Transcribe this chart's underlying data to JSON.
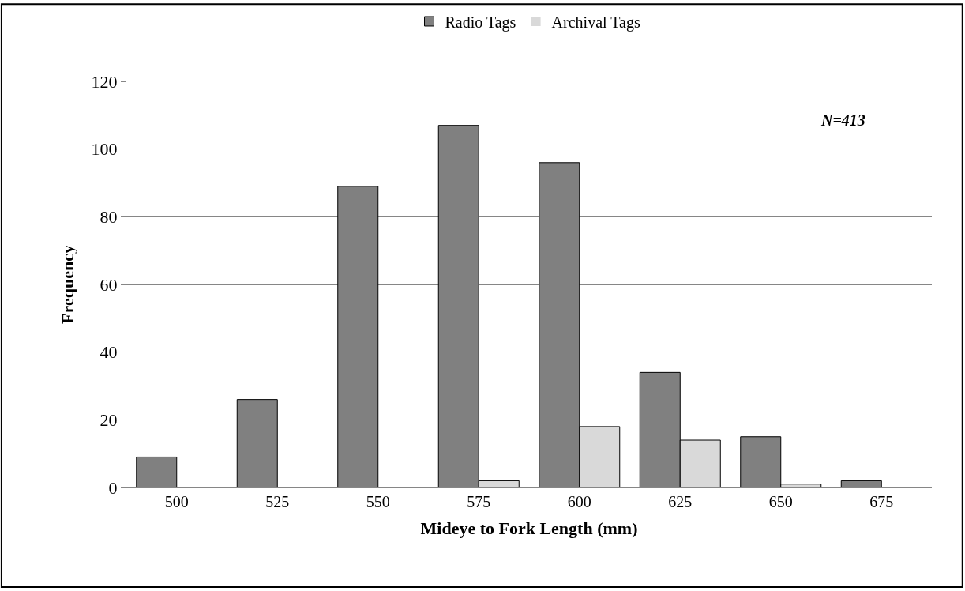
{
  "chart_data": {
    "type": "bar",
    "xlabel": "Mideye to Fork Length (mm)",
    "ylabel": "Frequency",
    "categories": [
      "500",
      "525",
      "550",
      "575",
      "600",
      "625",
      "650",
      "675"
    ],
    "series": [
      {
        "name": "Radio Tags",
        "color": "#808080",
        "values": [
          9,
          26,
          89,
          107,
          96,
          34,
          15,
          2
        ]
      },
      {
        "name": "Archival Tags",
        "color": "#d9d9d9",
        "values": [
          0,
          0,
          0,
          2,
          18,
          14,
          1,
          0
        ]
      }
    ],
    "ylim": [
      0,
      120
    ],
    "yticks": [
      0,
      20,
      40,
      60,
      80,
      100,
      120
    ],
    "grid": "y",
    "legend": "top",
    "annotations": [
      "N=413"
    ]
  }
}
